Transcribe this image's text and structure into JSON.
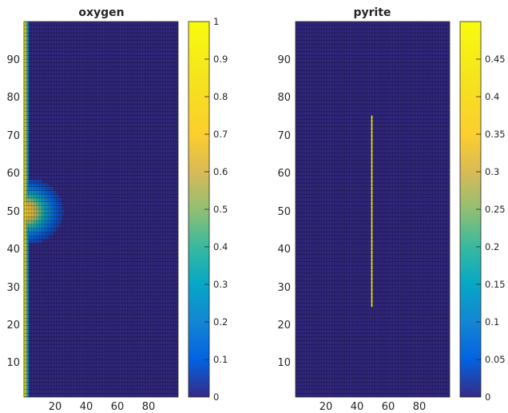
{
  "chart_data": [
    {
      "type": "heatmap",
      "title": "oxygen",
      "xlabel": "",
      "ylabel": "",
      "xlim": [
        1,
        100
      ],
      "ylim": [
        1,
        100
      ],
      "xticks": [
        20,
        40,
        60,
        80
      ],
      "yticks": [
        10,
        20,
        30,
        40,
        50,
        60,
        70,
        80,
        90
      ],
      "colormap": "parula",
      "grid_lines": "on",
      "clim": [
        0,
        1
      ],
      "colorbar_ticks": [
        "0",
        "0.1",
        "0.2",
        "0.3",
        "0.4",
        "0.5",
        "0.6",
        "0.7",
        "0.8",
        "0.9",
        "1"
      ],
      "colorbar_tick_values": [
        0,
        0.1,
        0.2,
        0.3,
        0.4,
        0.5,
        0.6,
        0.7,
        0.8,
        0.9,
        1
      ],
      "field": {
        "boundary_x": 1,
        "boundary_value": 1.0,
        "background_value": 0.0,
        "edge_decay_columns": 3,
        "plume": {
          "center_x": 1,
          "center_y": 50,
          "peak_value": 0.8,
          "extent_x": 25,
          "extent_y": 9
        }
      }
    },
    {
      "type": "heatmap",
      "title": "pyrite",
      "xlabel": "",
      "ylabel": "",
      "xlim": [
        1,
        100
      ],
      "ylim": [
        1,
        100
      ],
      "xticks": [
        20,
        40,
        60,
        80
      ],
      "yticks": [
        10,
        20,
        30,
        40,
        50,
        60,
        70,
        80,
        90
      ],
      "colormap": "parula",
      "grid_lines": "on",
      "clim": [
        0,
        0.5
      ],
      "colorbar_ticks": [
        "0",
        "0.05",
        "0.1",
        "0.15",
        "0.2",
        "0.25",
        "0.3",
        "0.35",
        "0.4",
        "0.45"
      ],
      "colorbar_tick_values": [
        0,
        0.05,
        0.1,
        0.15,
        0.2,
        0.25,
        0.3,
        0.35,
        0.4,
        0.45
      ],
      "field": {
        "background_value": 0.0,
        "line": {
          "x": 50,
          "y_from": 25,
          "y_to": 75,
          "value": 0.5
        }
      }
    }
  ]
}
